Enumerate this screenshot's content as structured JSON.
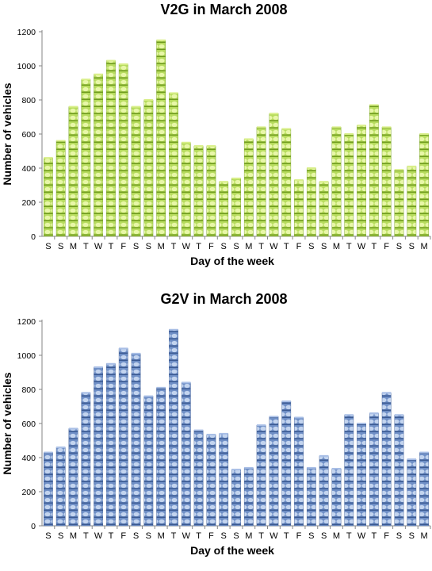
{
  "chart_data": [
    {
      "type": "bar",
      "title": "V2G in March 2008",
      "xlabel": "Day of the week",
      "ylabel": "Number of vehicles",
      "ylim": [
        0,
        1200
      ],
      "yticks": [
        0,
        200,
        400,
        600,
        800,
        1000,
        1200
      ],
      "grid": false,
      "color": "#9acd32",
      "categories": [
        "S",
        "S",
        "M",
        "T",
        "W",
        "T",
        "F",
        "S",
        "S",
        "M",
        "T",
        "W",
        "T",
        "F",
        "S",
        "S",
        "M",
        "T",
        "W",
        "T",
        "F",
        "S",
        "S",
        "M",
        "T",
        "W",
        "T",
        "F",
        "S",
        "S",
        "M"
      ],
      "values": [
        460,
        560,
        760,
        920,
        950,
        1030,
        1010,
        760,
        800,
        1150,
        840,
        550,
        530,
        530,
        320,
        340,
        570,
        640,
        720,
        630,
        330,
        400,
        320,
        640,
        600,
        650,
        770,
        640,
        390,
        410,
        600
      ]
    },
    {
      "type": "bar",
      "title": "G2V in March 2008",
      "xlabel": "Day of the week",
      "ylabel": "Number of vehicles",
      "ylim": [
        0,
        1200
      ],
      "yticks": [
        0,
        200,
        400,
        600,
        800,
        1000,
        1200
      ],
      "grid": false,
      "color": "#5b7fb8",
      "categories": [
        "S",
        "S",
        "M",
        "T",
        "W",
        "T",
        "F",
        "S",
        "S",
        "M",
        "T",
        "W",
        "T",
        "F",
        "S",
        "S",
        "M",
        "T",
        "W",
        "T",
        "F",
        "S",
        "S",
        "M",
        "T",
        "W",
        "T",
        "F",
        "S",
        "S",
        "M"
      ],
      "values": [
        430,
        460,
        570,
        780,
        930,
        950,
        1040,
        1010,
        760,
        810,
        1150,
        840,
        560,
        535,
        540,
        330,
        340,
        590,
        640,
        730,
        635,
        340,
        410,
        335,
        650,
        600,
        660,
        780,
        650,
        390,
        430
      ]
    }
  ]
}
